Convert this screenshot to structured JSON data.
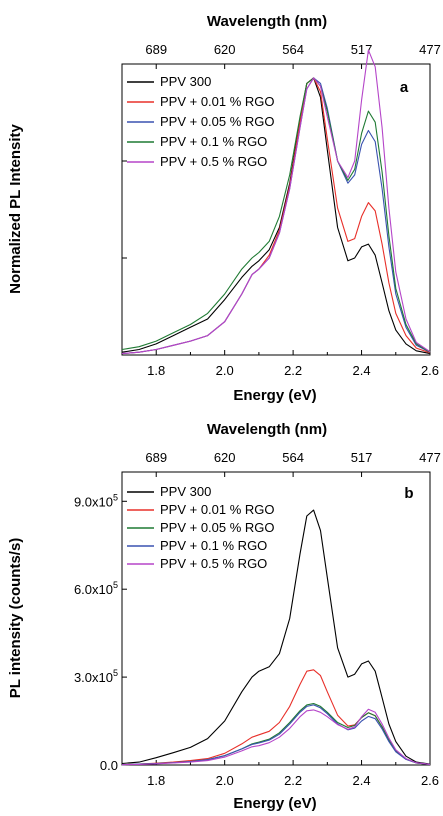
{
  "chart_data": [
    {
      "type": "line",
      "panel_label": "a",
      "xlabel": "Energy (eV)",
      "top_xlabel": "Wavelength (nm)",
      "ylabel": "Normalized PL Intensity",
      "xlim": [
        1.7,
        2.6
      ],
      "ylim": [
        0,
        1.05
      ],
      "xticks": [
        1.8,
        2.0,
        2.2,
        2.4,
        2.6
      ],
      "top_ticks": [
        {
          "energy": 1.8,
          "label": "689"
        },
        {
          "energy": 2.0,
          "label": "620"
        },
        {
          "energy": 2.2,
          "label": "564"
        },
        {
          "energy": 2.4,
          "label": "517"
        },
        {
          "energy": 2.6,
          "label": "477"
        }
      ],
      "yticks": [
        0.35,
        0.7
      ],
      "ytick_labels": false,
      "legend_position": "top-left",
      "series": [
        {
          "name": "PPV 300",
          "color": "#000000",
          "x": [
            1.7,
            1.75,
            1.8,
            1.85,
            1.9,
            1.95,
            2.0,
            2.05,
            2.08,
            2.1,
            2.13,
            2.16,
            2.19,
            2.22,
            2.24,
            2.26,
            2.28,
            2.3,
            2.33,
            2.36,
            2.38,
            2.4,
            2.42,
            2.44,
            2.46,
            2.48,
            2.5,
            2.53,
            2.56,
            2.6
          ],
          "values": [
            0.01,
            0.02,
            0.04,
            0.07,
            0.1,
            0.13,
            0.2,
            0.28,
            0.32,
            0.34,
            0.38,
            0.46,
            0.62,
            0.85,
            0.98,
            1.0,
            0.93,
            0.74,
            0.46,
            0.34,
            0.35,
            0.39,
            0.4,
            0.36,
            0.26,
            0.16,
            0.09,
            0.04,
            0.015,
            0.005
          ]
        },
        {
          "name": "PPV + 0.01 % RGO",
          "color": "#e8302a",
          "x": [
            1.7,
            1.75,
            1.8,
            1.85,
            1.9,
            1.95,
            2.0,
            2.05,
            2.08,
            2.1,
            2.13,
            2.16,
            2.19,
            2.22,
            2.24,
            2.26,
            2.28,
            2.3,
            2.33,
            2.36,
            2.38,
            2.4,
            2.42,
            2.44,
            2.46,
            2.48,
            2.5,
            2.53,
            2.56,
            2.6
          ],
          "values": [
            0.005,
            0.01,
            0.02,
            0.035,
            0.05,
            0.07,
            0.12,
            0.22,
            0.29,
            0.31,
            0.36,
            0.45,
            0.61,
            0.84,
            0.98,
            1.0,
            0.95,
            0.78,
            0.53,
            0.41,
            0.42,
            0.5,
            0.55,
            0.52,
            0.4,
            0.26,
            0.15,
            0.07,
            0.025,
            0.008
          ]
        },
        {
          "name": "PPV + 0.05 % RGO",
          "color": "#3a52b0",
          "x": [
            1.7,
            1.75,
            1.8,
            1.85,
            1.9,
            1.95,
            2.0,
            2.05,
            2.08,
            2.1,
            2.13,
            2.16,
            2.19,
            2.22,
            2.24,
            2.26,
            2.28,
            2.3,
            2.33,
            2.36,
            2.38,
            2.4,
            2.42,
            2.44,
            2.46,
            2.48,
            2.5,
            2.53,
            2.56,
            2.6
          ],
          "values": [
            0.005,
            0.01,
            0.02,
            0.035,
            0.05,
            0.07,
            0.12,
            0.22,
            0.29,
            0.31,
            0.35,
            0.44,
            0.6,
            0.82,
            0.96,
            1.0,
            0.98,
            0.89,
            0.7,
            0.62,
            0.65,
            0.76,
            0.81,
            0.77,
            0.6,
            0.39,
            0.22,
            0.1,
            0.035,
            0.01
          ]
        },
        {
          "name": "PPV + 0.1 % RGO",
          "color": "#1f7a33",
          "x": [
            1.7,
            1.75,
            1.8,
            1.85,
            1.9,
            1.95,
            2.0,
            2.05,
            2.08,
            2.1,
            2.13,
            2.16,
            2.19,
            2.22,
            2.24,
            2.26,
            2.28,
            2.3,
            2.33,
            2.36,
            2.38,
            2.4,
            2.42,
            2.44,
            2.46,
            2.48,
            2.5,
            2.53,
            2.56,
            2.6
          ],
          "values": [
            0.02,
            0.03,
            0.05,
            0.08,
            0.11,
            0.15,
            0.22,
            0.31,
            0.35,
            0.37,
            0.41,
            0.5,
            0.65,
            0.86,
            0.98,
            1.0,
            0.97,
            0.88,
            0.7,
            0.63,
            0.67,
            0.8,
            0.88,
            0.84,
            0.66,
            0.43,
            0.24,
            0.11,
            0.04,
            0.01
          ]
        },
        {
          "name": "PPV + 0.5 % RGO",
          "color": "#b545c9",
          "x": [
            1.7,
            1.75,
            1.8,
            1.85,
            1.9,
            1.95,
            2.0,
            2.05,
            2.08,
            2.1,
            2.13,
            2.16,
            2.19,
            2.22,
            2.24,
            2.26,
            2.28,
            2.3,
            2.33,
            2.36,
            2.38,
            2.4,
            2.42,
            2.44,
            2.46,
            2.48,
            2.5,
            2.53,
            2.56,
            2.6
          ],
          "values": [
            0.005,
            0.01,
            0.02,
            0.035,
            0.05,
            0.07,
            0.12,
            0.22,
            0.29,
            0.31,
            0.35,
            0.44,
            0.6,
            0.82,
            0.96,
            1.0,
            0.97,
            0.86,
            0.7,
            0.64,
            0.7,
            0.92,
            1.1,
            1.04,
            0.82,
            0.53,
            0.3,
            0.13,
            0.045,
            0.012
          ]
        }
      ]
    },
    {
      "type": "line",
      "panel_label": "b",
      "xlabel": "Energy (eV)",
      "top_xlabel": "Wavelength (nm)",
      "ylabel": "PL intensity (counts/s)",
      "xlim": [
        1.7,
        2.6
      ],
      "ylim": [
        0,
        1000000
      ],
      "xticks": [
        1.8,
        2.0,
        2.2,
        2.4,
        2.6
      ],
      "top_ticks": [
        {
          "energy": 1.8,
          "label": "689"
        },
        {
          "energy": 2.0,
          "label": "620"
        },
        {
          "energy": 2.2,
          "label": "564"
        },
        {
          "energy": 2.4,
          "label": "517"
        },
        {
          "energy": 2.6,
          "label": "477"
        }
      ],
      "yticks": [
        0,
        300000,
        600000,
        900000
      ],
      "ytick_labels": [
        {
          "mant": "0.0",
          "exp": ""
        },
        {
          "mant": "3.0x10",
          "exp": "5"
        },
        {
          "mant": "6.0x10",
          "exp": "5"
        },
        {
          "mant": "9.0x10",
          "exp": "5"
        }
      ],
      "legend_position": "top-left",
      "series": [
        {
          "name": "PPV 300",
          "color": "#000000",
          "x": [
            1.7,
            1.75,
            1.8,
            1.85,
            1.9,
            1.95,
            2.0,
            2.05,
            2.08,
            2.1,
            2.13,
            2.16,
            2.19,
            2.22,
            2.24,
            2.26,
            2.28,
            2.3,
            2.33,
            2.36,
            2.38,
            2.4,
            2.42,
            2.44,
            2.46,
            2.48,
            2.5,
            2.53,
            2.56,
            2.6
          ],
          "values": [
            5000,
            10000,
            25000,
            42000,
            60000,
            90000,
            150000,
            250000,
            300000,
            320000,
            335000,
            380000,
            500000,
            720000,
            850000,
            870000,
            800000,
            640000,
            400000,
            300000,
            310000,
            345000,
            355000,
            320000,
            230000,
            140000,
            80000,
            30000,
            10000,
            3000
          ]
        },
        {
          "name": "PPV + 0.01 % RGO",
          "color": "#e8302a",
          "x": [
            1.7,
            1.75,
            1.8,
            1.85,
            1.9,
            1.95,
            2.0,
            2.05,
            2.08,
            2.1,
            2.13,
            2.16,
            2.19,
            2.22,
            2.24,
            2.26,
            2.28,
            2.3,
            2.33,
            2.36,
            2.38,
            2.4,
            2.42,
            2.44,
            2.46,
            2.48,
            2.5,
            2.53,
            2.56,
            2.6
          ],
          "values": [
            1000,
            3000,
            6000,
            10000,
            15000,
            22000,
            40000,
            72000,
            95000,
            103000,
            115000,
            145000,
            200000,
            275000,
            320000,
            325000,
            305000,
            250000,
            170000,
            133000,
            137000,
            162000,
            178000,
            168000,
            130000,
            85000,
            48000,
            20000,
            7000,
            2000
          ]
        },
        {
          "name": "PPV + 0.05 % RGO",
          "color": "#1f7a33",
          "x": [
            1.7,
            1.75,
            1.8,
            1.85,
            1.9,
            1.95,
            2.0,
            2.05,
            2.08,
            2.1,
            2.13,
            2.16,
            2.19,
            2.22,
            2.24,
            2.26,
            2.28,
            2.3,
            2.33,
            2.36,
            2.38,
            2.4,
            2.42,
            2.44,
            2.46,
            2.48,
            2.5,
            2.53,
            2.56,
            2.6
          ],
          "values": [
            1000,
            3000,
            5000,
            8000,
            12000,
            18000,
            32000,
            55000,
            72000,
            78000,
            88000,
            110000,
            145000,
            185000,
            205000,
            210000,
            200000,
            180000,
            145000,
            128000,
            135000,
            162000,
            178000,
            168000,
            130000,
            85000,
            48000,
            20000,
            7000,
            2000
          ]
        },
        {
          "name": "PPV + 0.1 % RGO",
          "color": "#3a52b0",
          "x": [
            1.7,
            1.75,
            1.8,
            1.85,
            1.9,
            1.95,
            2.0,
            2.05,
            2.08,
            2.1,
            2.13,
            2.16,
            2.19,
            2.22,
            2.24,
            2.26,
            2.28,
            2.3,
            2.33,
            2.36,
            2.38,
            2.4,
            2.42,
            2.44,
            2.46,
            2.48,
            2.5,
            2.53,
            2.56,
            2.6
          ],
          "values": [
            1000,
            3000,
            5000,
            8000,
            12000,
            18000,
            32000,
            55000,
            70000,
            75000,
            85000,
            105000,
            140000,
            180000,
            200000,
            205000,
            195000,
            175000,
            140000,
            120000,
            126000,
            150000,
            166000,
            158000,
            123000,
            80000,
            45000,
            19000,
            7000,
            2000
          ]
        },
        {
          "name": "PPV + 0.5 % RGO",
          "color": "#b545c9",
          "x": [
            1.7,
            1.75,
            1.8,
            1.85,
            1.9,
            1.95,
            2.0,
            2.05,
            2.08,
            2.1,
            2.13,
            2.16,
            2.19,
            2.22,
            2.24,
            2.26,
            2.28,
            2.3,
            2.33,
            2.36,
            2.38,
            2.4,
            2.42,
            2.44,
            2.46,
            2.48,
            2.5,
            2.53,
            2.56,
            2.6
          ],
          "values": [
            1000,
            2000,
            4000,
            7000,
            10000,
            15000,
            27000,
            48000,
            62000,
            66000,
            76000,
            95000,
            125000,
            165000,
            185000,
            188000,
            180000,
            165000,
            138000,
            122000,
            130000,
            165000,
            190000,
            180000,
            140000,
            92000,
            52000,
            22000,
            8000,
            2000
          ]
        }
      ]
    }
  ]
}
